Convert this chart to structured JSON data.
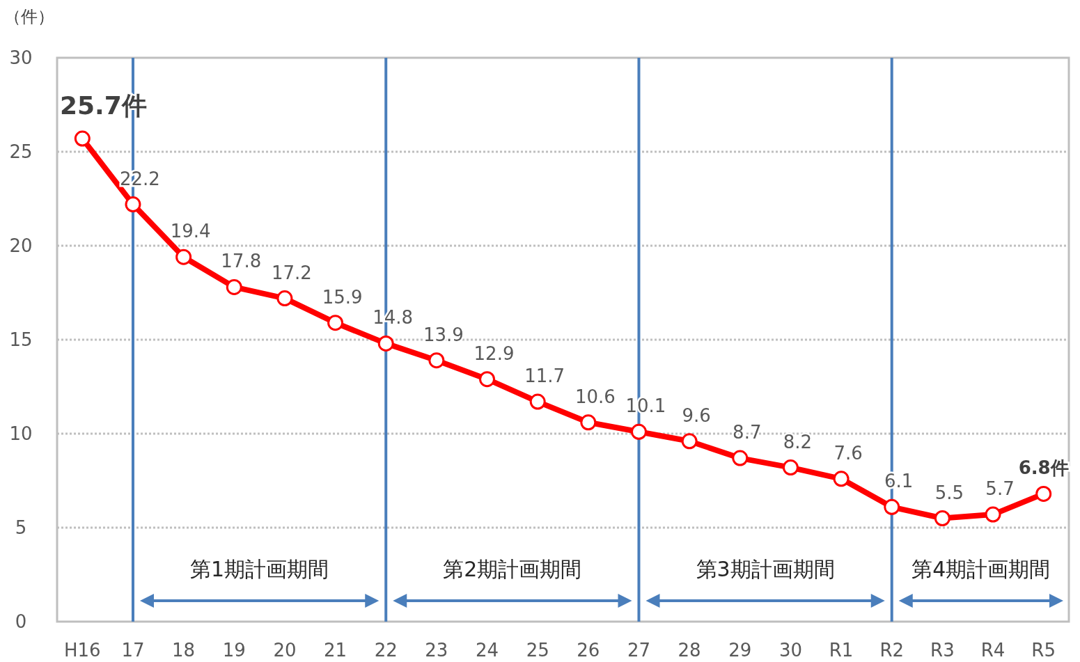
{
  "chart_data": {
    "type": "line",
    "ylabel": "（件）",
    "categories": [
      "H16",
      "17",
      "18",
      "19",
      "20",
      "21",
      "22",
      "23",
      "24",
      "25",
      "26",
      "27",
      "28",
      "29",
      "30",
      "R1",
      "R2",
      "R3",
      "R4",
      "R5"
    ],
    "series": [
      {
        "color": "#ff0000",
        "values": [
          25.7,
          22.2,
          19.4,
          17.8,
          17.2,
          15.9,
          14.8,
          13.9,
          12.9,
          11.7,
          10.6,
          10.1,
          9.6,
          8.7,
          8.2,
          7.6,
          6.1,
          5.5,
          5.7,
          6.8
        ],
        "value_labels": [
          "25.7件",
          "22.2",
          "19.4",
          "17.8",
          "17.2",
          "15.9",
          "14.8",
          "13.9",
          "12.9",
          "11.7",
          "10.6",
          "10.1",
          "9.6",
          "8.7",
          "8.2",
          "7.6",
          "6.1",
          "5.5",
          "5.7",
          "6.8件"
        ]
      }
    ],
    "ylim": [
      0,
      30
    ],
    "yticks": [
      0,
      5,
      10,
      15,
      20,
      25,
      30
    ],
    "grid": "y",
    "marker": "circle",
    "ref_lines": [
      {
        "axis": "x",
        "value": "17",
        "color": "#4a7ebb"
      },
      {
        "axis": "x",
        "value": "22",
        "color": "#4a7ebb"
      },
      {
        "axis": "x",
        "value": "27",
        "color": "#4a7ebb"
      },
      {
        "axis": "x",
        "value": "R2",
        "color": "#4a7ebb"
      }
    ],
    "annotations": [
      "第1期計画期間",
      "第2期計画期間",
      "第3期計画期間",
      "第4期計画期間"
    ]
  }
}
